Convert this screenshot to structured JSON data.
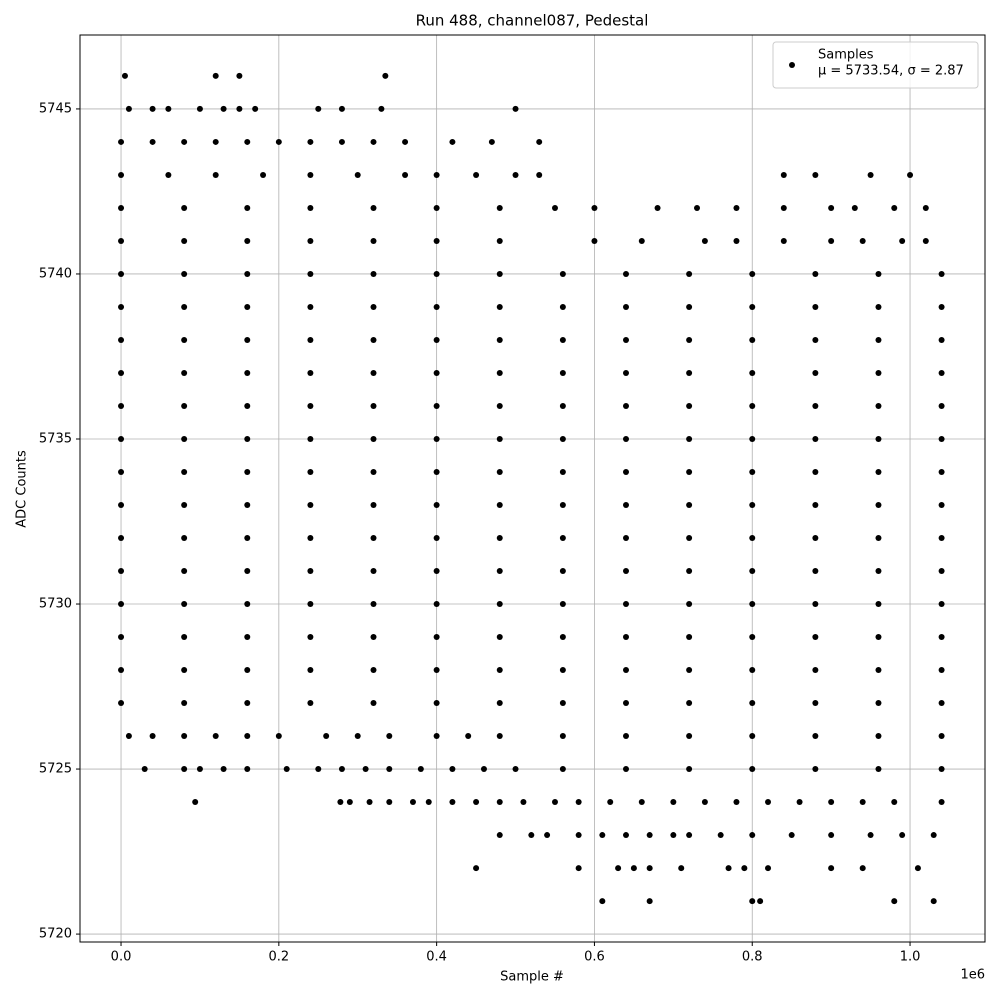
{
  "chart_data": {
    "type": "scatter",
    "title": "Run 488, channel087, Pedestal",
    "xlabel": "Sample #",
    "ylabel": "ADC Counts",
    "x_offset_label": "1e6",
    "legend": {
      "name": "Samples",
      "label": "μ = 5733.54, σ = 2.87",
      "loc": "upper right"
    },
    "color": "#000000",
    "grid": true,
    "xlim": [
      -0.052,
      1.095
    ],
    "ylim": [
      5719.76,
      5747.24
    ],
    "xticks": [
      {
        "value": 0,
        "label": "0.0"
      },
      {
        "value": 0.2,
        "label": "0.2"
      },
      {
        "value": 0.4,
        "label": "0.4"
      },
      {
        "value": 0.6,
        "label": "0.6"
      },
      {
        "value": 0.8,
        "label": "0.8"
      },
      {
        "value": 1,
        "label": "1.0"
      }
    ],
    "yticks": [
      5720,
      5725,
      5730,
      5735,
      5740,
      5745
    ],
    "x": [
      0,
      0.08,
      0.16,
      0.24,
      0.32,
      0.4,
      0.48,
      0.56,
      0.64,
      0.72,
      0.8,
      0.88,
      0.96,
      1.04,
      0,
      0.08,
      0.16,
      0.24,
      0.32,
      0.4,
      0.48,
      0.56,
      0.64,
      0.72,
      0.8,
      0.88,
      0.96,
      1.04,
      0,
      0.08,
      0.16,
      0.24,
      0.32,
      0.4,
      0.48,
      0.56,
      0.64,
      0.72,
      0.8,
      0.88,
      0.96,
      1.04,
      0,
      0.08,
      0.16,
      0.24,
      0.32,
      0.4,
      0.48,
      0.56,
      0.64,
      0.72,
      0.8,
      0.88,
      0.96,
      1.04,
      0,
      0.08,
      0.16,
      0.24,
      0.32,
      0.4,
      0.48,
      0.56,
      0.64,
      0.72,
      0.8,
      0.88,
      0.96,
      1.04,
      0,
      0.08,
      0.16,
      0.24,
      0.32,
      0.4,
      0.48,
      0.56,
      0.64,
      0.72,
      0.8,
      0.88,
      0.96,
      1.04,
      0,
      0.08,
      0.16,
      0.24,
      0.32,
      0.4,
      0.48,
      0.56,
      0.64,
      0.72,
      0.8,
      0.88,
      0.96,
      1.04,
      0,
      0.08,
      0.16,
      0.24,
      0.32,
      0.4,
      0.48,
      0.56,
      0.64,
      0.72,
      0.8,
      0.88,
      0.96,
      1.04,
      0,
      0.08,
      0.16,
      0.24,
      0.32,
      0.4,
      0.48,
      0.56,
      0.64,
      0.72,
      0.8,
      0.88,
      0.96,
      1.04,
      0,
      0.08,
      0.16,
      0.24,
      0.32,
      0.4,
      0.48,
      0.56,
      0.64,
      0.72,
      0.8,
      0.88,
      0.96,
      1.04,
      0,
      0.08,
      0.16,
      0.24,
      0.32,
      0.4,
      0.48,
      0.56,
      0.64,
      0.72,
      0.8,
      0.88,
      0.96,
      1.04,
      0,
      0.08,
      0.16,
      0.24,
      0.32,
      0.4,
      0.48,
      0.56,
      0.64,
      0.72,
      0.8,
      0.88,
      0.96,
      1.04,
      0,
      0.08,
      0.16,
      0.24,
      0.32,
      0.4,
      0.48,
      0.56,
      0.64,
      0.72,
      0.8,
      0.88,
      0.96,
      1.04,
      0,
      0.08,
      0.16,
      0.24,
      0.32,
      0.4,
      0.48,
      0.56,
      0.64,
      0.72,
      0.8,
      0.88,
      0.96,
      1.04,
      0,
      0.08,
      0.16,
      0.24,
      0.32,
      0.4,
      0.48,
      0.6,
      0.66,
      0.74,
      0.78,
      0.84,
      0.9,
      0.94,
      0.99,
      1.02,
      0,
      0.08,
      0.16,
      0.24,
      0.32,
      0.4,
      0.48,
      0.55,
      0.6,
      0.68,
      0.73,
      0.78,
      0.84,
      0.9,
      0.93,
      0.98,
      1.02,
      0,
      0.06,
      0.12,
      0.18,
      0.24,
      0.3,
      0.36,
      0.4,
      0.45,
      0.5,
      0.53,
      0.84,
      0.88,
      0.95,
      1.0,
      0,
      0.04,
      0.08,
      0.12,
      0.16,
      0.2,
      0.24,
      0.28,
      0.32,
      0.36,
      0.42,
      0.47,
      0.53,
      0.01,
      0.04,
      0.06,
      0.1,
      0.13,
      0.15,
      0.17,
      0.25,
      0.28,
      0.33,
      0.5,
      0.005,
      0.12,
      0.15,
      0.335,
      0.01,
      0.04,
      0.08,
      0.12,
      0.16,
      0.2,
      0.26,
      0.3,
      0.34,
      0.4,
      0.44,
      0.48,
      0.56,
      0.64,
      0.72,
      0.8,
      0.88,
      0.96,
      1.04,
      0.03,
      0.08,
      0.1,
      0.13,
      0.16,
      0.21,
      0.25,
      0.28,
      0.31,
      0.34,
      0.38,
      0.42,
      0.46,
      0.5,
      0.56,
      0.64,
      0.72,
      0.8,
      0.88,
      0.96,
      1.04,
      0.094,
      0.278,
      0.29,
      0.315,
      0.34,
      0.37,
      0.39,
      0.42,
      0.45,
      0.48,
      0.51,
      0.55,
      0.58,
      0.62,
      0.66,
      0.7,
      0.74,
      0.78,
      0.82,
      0.86,
      0.9,
      0.94,
      0.98,
      1.04,
      0.48,
      0.52,
      0.54,
      0.58,
      0.61,
      0.64,
      0.67,
      0.7,
      0.72,
      0.76,
      0.8,
      0.85,
      0.9,
      0.95,
      0.99,
      1.03,
      0.45,
      0.58,
      0.63,
      0.65,
      0.67,
      0.71,
      0.77,
      0.79,
      0.82,
      0.9,
      0.94,
      1.01,
      0.61,
      0.67,
      0.8,
      0.81,
      0.98,
      1.03
    ],
    "y": [
      5727,
      5727,
      5727,
      5727,
      5727,
      5727,
      5727,
      5727,
      5727,
      5727,
      5727,
      5727,
      5727,
      5727,
      5728,
      5728,
      5728,
      5728,
      5728,
      5728,
      5728,
      5728,
      5728,
      5728,
      5728,
      5728,
      5728,
      5728,
      5729,
      5729,
      5729,
      5729,
      5729,
      5729,
      5729,
      5729,
      5729,
      5729,
      5729,
      5729,
      5729,
      5729,
      5730,
      5730,
      5730,
      5730,
      5730,
      5730,
      5730,
      5730,
      5730,
      5730,
      5730,
      5730,
      5730,
      5730,
      5731,
      5731,
      5731,
      5731,
      5731,
      5731,
      5731,
      5731,
      5731,
      5731,
      5731,
      5731,
      5731,
      5731,
      5732,
      5732,
      5732,
      5732,
      5732,
      5732,
      5732,
      5732,
      5732,
      5732,
      5732,
      5732,
      5732,
      5732,
      5733,
      5733,
      5733,
      5733,
      5733,
      5733,
      5733,
      5733,
      5733,
      5733,
      5733,
      5733,
      5733,
      5733,
      5734,
      5734,
      5734,
      5734,
      5734,
      5734,
      5734,
      5734,
      5734,
      5734,
      5734,
      5734,
      5734,
      5734,
      5735,
      5735,
      5735,
      5735,
      5735,
      5735,
      5735,
      5735,
      5735,
      5735,
      5735,
      5735,
      5735,
      5735,
      5736,
      5736,
      5736,
      5736,
      5736,
      5736,
      5736,
      5736,
      5736,
      5736,
      5736,
      5736,
      5736,
      5736,
      5737,
      5737,
      5737,
      5737,
      5737,
      5737,
      5737,
      5737,
      5737,
      5737,
      5737,
      5737,
      5737,
      5737,
      5738,
      5738,
      5738,
      5738,
      5738,
      5738,
      5738,
      5738,
      5738,
      5738,
      5738,
      5738,
      5738,
      5738,
      5739,
      5739,
      5739,
      5739,
      5739,
      5739,
      5739,
      5739,
      5739,
      5739,
      5739,
      5739,
      5739,
      5739,
      5740,
      5740,
      5740,
      5740,
      5740,
      5740,
      5740,
      5740,
      5740,
      5740,
      5740,
      5740,
      5740,
      5740,
      5741,
      5741,
      5741,
      5741,
      5741,
      5741,
      5741,
      5741,
      5741,
      5741,
      5741,
      5741,
      5741,
      5741,
      5741,
      5741,
      5742,
      5742,
      5742,
      5742,
      5742,
      5742,
      5742,
      5742,
      5742,
      5742,
      5742,
      5742,
      5742,
      5742,
      5742,
      5742,
      5742,
      5743,
      5743,
      5743,
      5743,
      5743,
      5743,
      5743,
      5743,
      5743,
      5743,
      5743,
      5743,
      5743,
      5743,
      5743,
      5744,
      5744,
      5744,
      5744,
      5744,
      5744,
      5744,
      5744,
      5744,
      5744,
      5744,
      5744,
      5744,
      5745,
      5745,
      5745,
      5745,
      5745,
      5745,
      5745,
      5745,
      5745,
      5745,
      5745,
      5746,
      5746,
      5746,
      5746,
      5726,
      5726,
      5726,
      5726,
      5726,
      5726,
      5726,
      5726,
      5726,
      5726,
      5726,
      5726,
      5726,
      5726,
      5726,
      5726,
      5726,
      5726,
      5726,
      5725,
      5725,
      5725,
      5725,
      5725,
      5725,
      5725,
      5725,
      5725,
      5725,
      5725,
      5725,
      5725,
      5725,
      5725,
      5725,
      5725,
      5725,
      5725,
      5725,
      5725,
      5724,
      5724,
      5724,
      5724,
      5724,
      5724,
      5724,
      5724,
      5724,
      5724,
      5724,
      5724,
      5724,
      5724,
      5724,
      5724,
      5724,
      5724,
      5724,
      5724,
      5724,
      5724,
      5724,
      5724,
      5723,
      5723,
      5723,
      5723,
      5723,
      5723,
      5723,
      5723,
      5723,
      5723,
      5723,
      5723,
      5723,
      5723,
      5723,
      5723,
      5722,
      5722,
      5722,
      5722,
      5722,
      5722,
      5722,
      5722,
      5722,
      5722,
      5722,
      5722,
      5721,
      5721,
      5721,
      5721,
      5721,
      5721
    ]
  }
}
